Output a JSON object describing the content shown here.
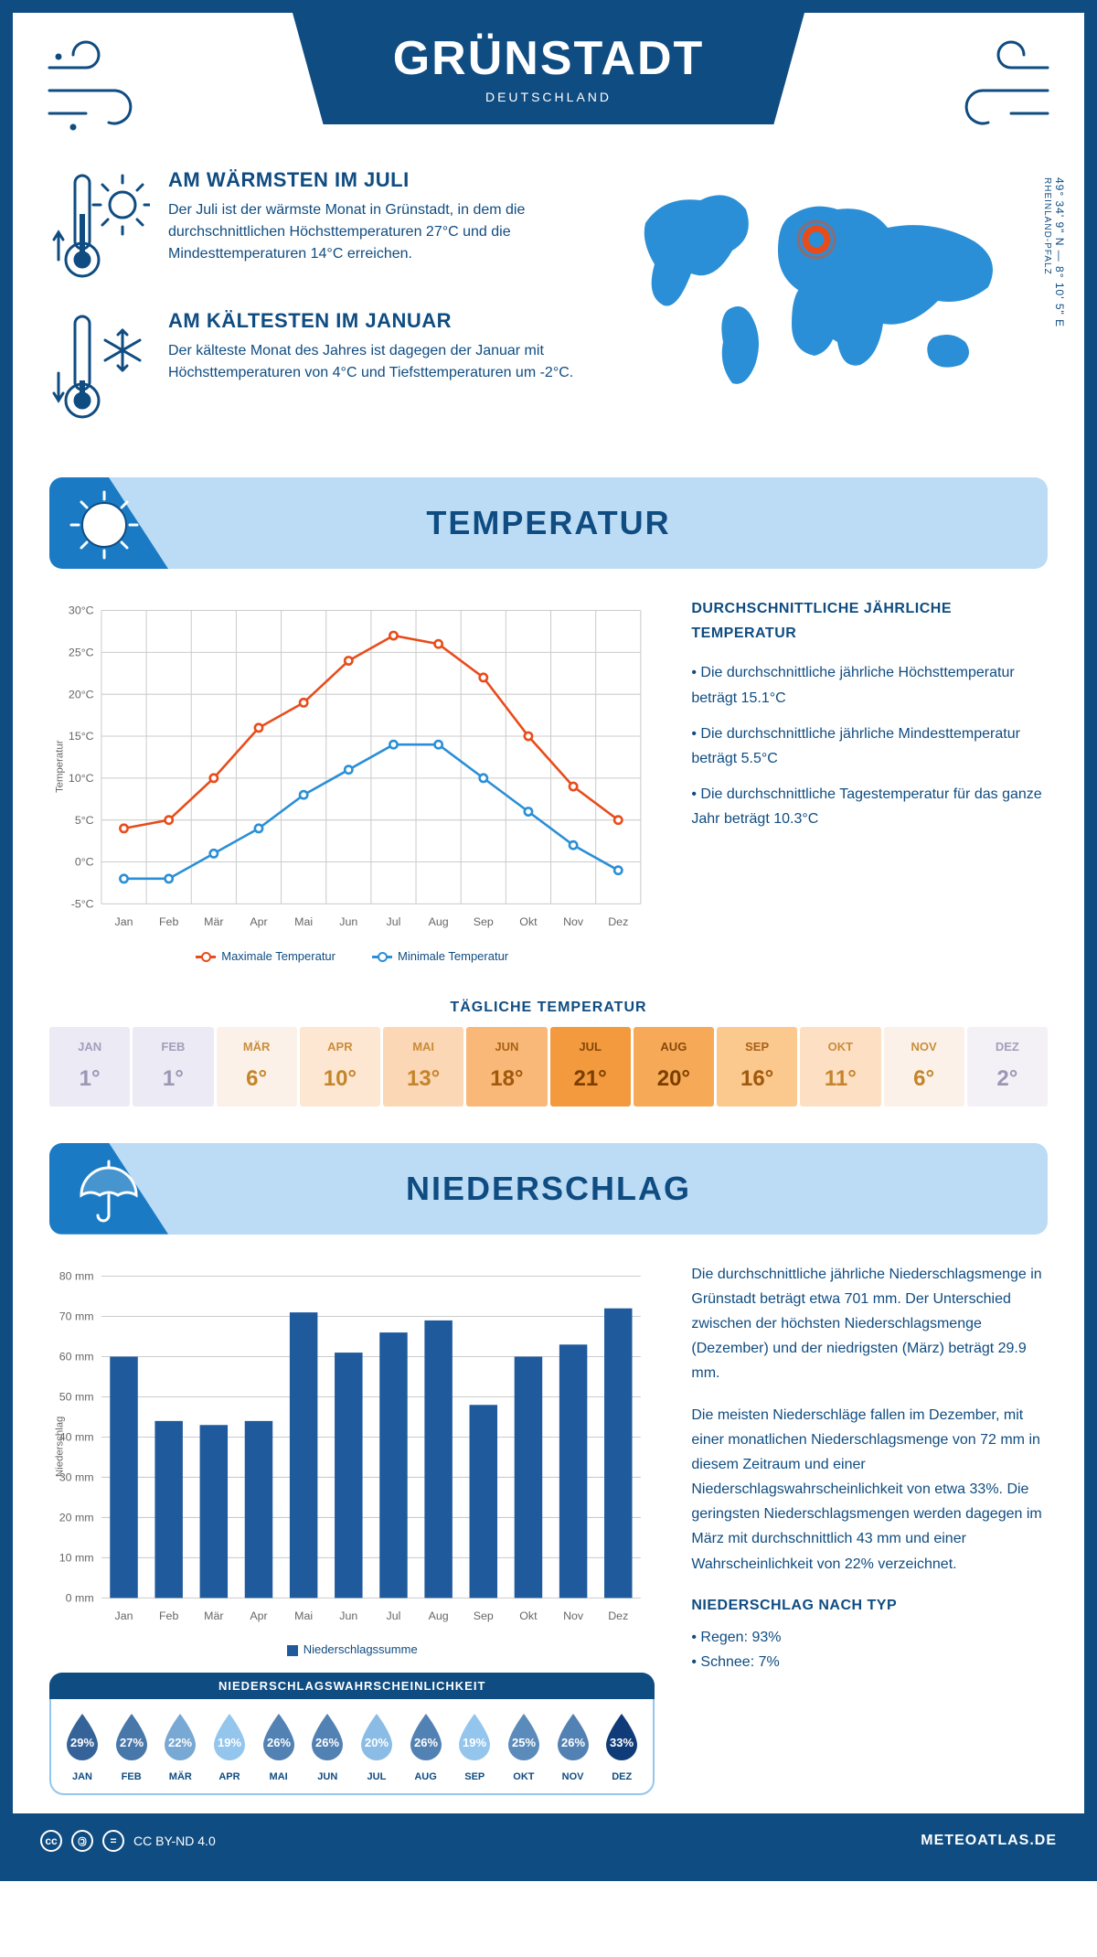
{
  "header": {
    "city": "GRÜNSTADT",
    "country": "DEUTSCHLAND",
    "coords": "49° 34' 9\" N — 8° 10' 5\" E",
    "region": "RHEINLAND-PFALZ"
  },
  "colors": {
    "primary": "#0f4c81",
    "banner_bg": "#bcdcf5",
    "banner_corner": "#1a7bc4",
    "map": "#2a8fd6",
    "marker": "#e84c1a",
    "max_line": "#e84c1a",
    "min_line": "#2a8fd6",
    "bar": "#1e5a9c",
    "grid": "#cccccc"
  },
  "facts": {
    "warm": {
      "title": "AM WÄRMSTEN IM JULI",
      "body": "Der Juli ist der wärmste Monat in Grünstadt, in dem die durchschnittlichen Höchsttemperaturen 27°C und die Mindesttemperaturen 14°C erreichen."
    },
    "cold": {
      "title": "AM KÄLTESTEN IM JANUAR",
      "body": "Der kälteste Monat des Jahres ist dagegen der Januar mit Höchsttemperaturen von 4°C und Tiefsttemperaturen um -2°C."
    }
  },
  "sections": {
    "temperature": "TEMPERATUR",
    "precipitation": "NIEDERSCHLAG"
  },
  "months_short": [
    "Jan",
    "Feb",
    "Mär",
    "Apr",
    "Mai",
    "Jun",
    "Jul",
    "Aug",
    "Sep",
    "Okt",
    "Nov",
    "Dez"
  ],
  "months_upper": [
    "JAN",
    "FEB",
    "MÄR",
    "APR",
    "MAI",
    "JUN",
    "JUL",
    "AUG",
    "SEP",
    "OKT",
    "NOV",
    "DEZ"
  ],
  "temp_chart": {
    "type": "line",
    "ylabel": "Temperatur",
    "ylim": [
      -5,
      30
    ],
    "ytick_step": 5,
    "y_suffix": "°C",
    "max_series": [
      4,
      5,
      10,
      16,
      19,
      24,
      27,
      26,
      22,
      15,
      9,
      5
    ],
    "min_series": [
      -2,
      -2,
      1,
      4,
      8,
      11,
      14,
      14,
      10,
      6,
      2,
      -1
    ],
    "legend_max": "Maximale Temperatur",
    "legend_min": "Minimale Temperatur"
  },
  "temp_text": {
    "heading": "DURCHSCHNITTLICHE JÄHRLICHE TEMPERATUR",
    "b1": "• Die durchschnittliche jährliche Höchsttemperatur beträgt 15.1°C",
    "b2": "• Die durchschnittliche jährliche Mindesttemperatur beträgt 5.5°C",
    "b3": "• Die durchschnittliche Tagestemperatur für das ganze Jahr beträgt 10.3°C"
  },
  "daily_temp": {
    "title": "TÄGLICHE TEMPERATUR",
    "values": [
      "1°",
      "1°",
      "6°",
      "10°",
      "13°",
      "18°",
      "21°",
      "20°",
      "16°",
      "11°",
      "6°",
      "2°"
    ],
    "cell_bg": [
      "#eceaf5",
      "#eceaf5",
      "#fbf1e8",
      "#fde7d3",
      "#fcd7b5",
      "#f9b877",
      "#f39a3e",
      "#f6a956",
      "#fbc88e",
      "#fde0c4",
      "#fbf1e8",
      "#f4f1f6"
    ],
    "cell_fg": [
      "#9a96b5",
      "#9a96b5",
      "#c4842a",
      "#c4842a",
      "#c4842a",
      "#a0580a",
      "#7a3e00",
      "#7a3e00",
      "#a0580a",
      "#c4842a",
      "#c4842a",
      "#9a96b5"
    ]
  },
  "precip_chart": {
    "type": "bar",
    "ylabel": "Niederschlag",
    "ylim": [
      0,
      80
    ],
    "ytick_step": 10,
    "y_suffix": " mm",
    "values": [
      60,
      44,
      43,
      44,
      71,
      61,
      66,
      69,
      48,
      60,
      63,
      72
    ],
    "legend": "Niederschlagssumme"
  },
  "precip_text": {
    "p1": "Die durchschnittliche jährliche Niederschlagsmenge in Grünstadt beträgt etwa 701 mm. Der Unterschied zwischen der höchsten Niederschlagsmenge (Dezember) und der niedrigsten (März) beträgt 29.9 mm.",
    "p2": "Die meisten Niederschläge fallen im Dezember, mit einer monatlichen Niederschlagsmenge von 72 mm in diesem Zeitraum und einer Niederschlagswahrscheinlichkeit von etwa 33%. Die geringsten Niederschlagsmengen werden dagegen im März mit durchschnittlich 43 mm und einer Wahrscheinlichkeit von 22% verzeichnet.",
    "type_heading": "NIEDERSCHLAG NACH TYP",
    "type_b1": "• Regen: 93%",
    "type_b2": "• Schnee: 7%"
  },
  "precip_prob": {
    "title": "NIEDERSCHLAGSWAHRSCHEINLICHKEIT",
    "values": [
      29,
      27,
      22,
      19,
      26,
      26,
      20,
      26,
      19,
      25,
      26,
      33
    ]
  },
  "footer": {
    "license": "CC BY-ND 4.0",
    "site": "METEOATLAS.DE"
  }
}
